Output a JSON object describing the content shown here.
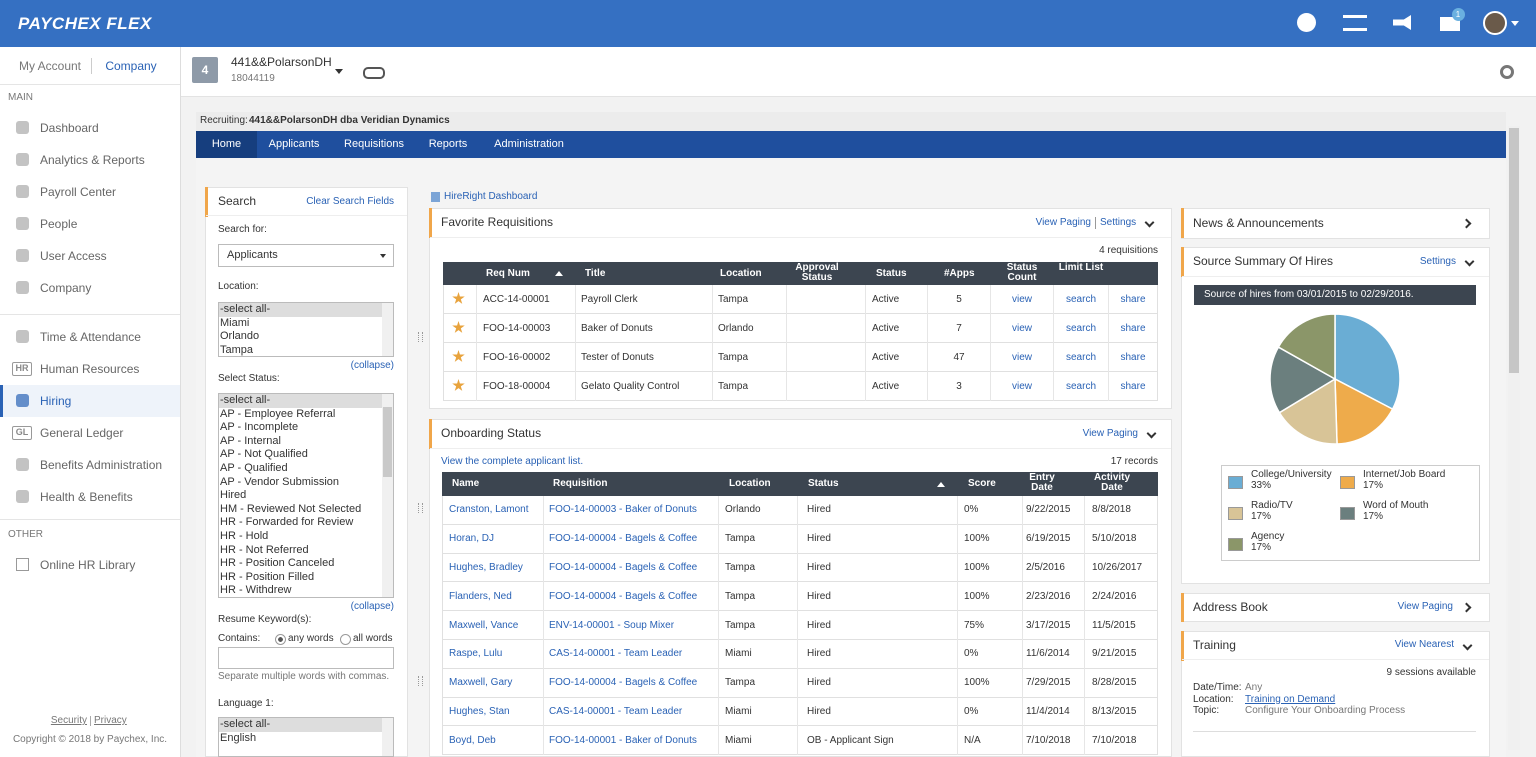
{
  "header": {
    "logo": "PAYCHEX FLEX",
    "notification_count": "1"
  },
  "sidebar": {
    "tabs": [
      "My Account",
      "Company"
    ],
    "main_label": "MAIN",
    "main_items": [
      {
        "label": "Dashboard"
      },
      {
        "label": "Analytics & Reports"
      },
      {
        "label": "Payroll Center"
      },
      {
        "label": "People"
      },
      {
        "label": "User Access"
      },
      {
        "label": "Company"
      },
      {
        "label": "Time & Attendance"
      },
      {
        "label": "Human Resources",
        "icon": "HR"
      },
      {
        "label": "Hiring"
      },
      {
        "label": "General Ledger",
        "icon": "GL"
      },
      {
        "label": "Benefits Administration"
      },
      {
        "label": "Health & Benefits"
      }
    ],
    "active": 8,
    "other_label": "OTHER",
    "other_items": [
      "Online HR Library"
    ],
    "footer_links": [
      "Security",
      "Privacy"
    ],
    "copyright": "Copyright © 2018 by Paychex, Inc."
  },
  "company": {
    "number": "4",
    "name": "441&&PolarsonDH",
    "id": "18044119"
  },
  "recruiting": {
    "label": "Recruiting:",
    "company": "441&&PolarsonDH dba Veridian Dynamics"
  },
  "nav": {
    "items": [
      "Home",
      "Applicants",
      "Requisitions",
      "Reports",
      "Administration"
    ],
    "active": 0
  },
  "search": {
    "title": "Search",
    "clear": "Clear Search Fields",
    "search_for_label": "Search for:",
    "search_for": "Applicants",
    "location_label": "Location:",
    "locations": [
      "-select all-",
      "Miami",
      "Orlando",
      "Tampa"
    ],
    "collapse": "(collapse)",
    "status_label": "Select Status:",
    "statuses": [
      "-select all-",
      "AP - Employee Referral",
      "AP - Incomplete",
      "AP - Internal",
      "AP - Not Qualified",
      "AP - Qualified",
      "AP - Vendor Submission",
      "Hired",
      "HM - Reviewed Not Selected",
      "HR - Forwarded for Review",
      "HR - Hold",
      "HR - Not Referred",
      "HR - Position Canceled",
      "HR - Position Filled",
      "HR - Withdrew"
    ],
    "keyword_label": "Resume Keyword(s):",
    "contains_label": "Contains:",
    "contains_options": [
      "any words",
      "all words"
    ],
    "keyword_hint": "Separate multiple words with commas.",
    "language_label": "Language 1:",
    "languages": [
      "-select all-",
      "English"
    ]
  },
  "hireright": "HireRight Dashboard",
  "favorites": {
    "title": "Favorite Requisitions",
    "view_paging": "View Paging",
    "settings": "Settings",
    "count": "4 requisitions",
    "columns": [
      "Req Num",
      "Title",
      "Location",
      "Approval Status",
      "Status",
      "#Apps",
      "Status Count",
      "Limit List"
    ],
    "rows": [
      [
        "ACC-14-00001",
        "Payroll Clerk",
        "Tampa",
        "Active",
        "5",
        "view",
        "search",
        "share"
      ],
      [
        "FOO-14-00003",
        "Baker of Donuts",
        "Orlando",
        "Active",
        "7",
        "view",
        "search",
        "share"
      ],
      [
        "FOO-16-00002",
        "Tester of Donuts",
        "Tampa",
        "Active",
        "47",
        "view",
        "search",
        "share"
      ],
      [
        "FOO-18-00004",
        "Gelato Quality Control",
        "Tampa",
        "Active",
        "3",
        "view",
        "search",
        "share"
      ]
    ]
  },
  "onboarding": {
    "title": "Onboarding Status",
    "view_paging": "View Paging",
    "link": "View the complete applicant list.",
    "count": "17 records",
    "columns": [
      "Name",
      "Requisition",
      "Location",
      "Status",
      "Score",
      "Entry Date",
      "Activity Date"
    ],
    "rows": [
      [
        "Cranston, Lamont",
        "FOO-14-00003 - Baker of Donuts",
        "Orlando",
        "Hired",
        "0%",
        "9/22/2015",
        "8/8/2018"
      ],
      [
        "Horan, DJ",
        "FOO-14-00004 - Bagels & Coffee",
        "Tampa",
        "Hired",
        "100%",
        "6/19/2015",
        "5/10/2018"
      ],
      [
        "Hughes, Bradley",
        "FOO-14-00004 - Bagels & Coffee",
        "Tampa",
        "Hired",
        "100%",
        "2/5/2016",
        "10/26/2017"
      ],
      [
        "Flanders, Ned",
        "FOO-14-00004 - Bagels & Coffee",
        "Tampa",
        "Hired",
        "100%",
        "2/23/2016",
        "2/24/2016"
      ],
      [
        "Maxwell, Vance",
        "ENV-14-00001 - Soup Mixer",
        "Tampa",
        "Hired",
        "75%",
        "3/17/2015",
        "11/5/2015"
      ],
      [
        "Raspe, Lulu",
        "CAS-14-00001 - Team Leader",
        "Miami",
        "Hired",
        "0%",
        "11/6/2014",
        "9/21/2015"
      ],
      [
        "Maxwell, Gary",
        "FOO-14-00004 - Bagels & Coffee",
        "Tampa",
        "Hired",
        "100%",
        "7/29/2015",
        "8/28/2015"
      ],
      [
        "Hughes, Stan",
        "CAS-14-00001 - Team Leader",
        "Miami",
        "Hired",
        "0%",
        "11/4/2014",
        "8/13/2015"
      ],
      [
        "Boyd, Deb",
        "FOO-14-00001 - Baker of Donuts",
        "Miami",
        "OB - Applicant Sign",
        "N/A",
        "7/10/2018",
        "7/10/2018"
      ]
    ]
  },
  "news": {
    "title": "News & Announcements"
  },
  "source_summary": {
    "title": "Source Summary Of Hires",
    "settings": "Settings"
  },
  "chart_data": {
    "type": "pie",
    "title": "Source of hires from 03/01/2015 to 02/29/2016.",
    "categories": [
      "College/University",
      "Internet/Job Board",
      "Radio/TV",
      "Word of Mouth",
      "Agency"
    ],
    "values": [
      33,
      17,
      17,
      17,
      17
    ],
    "value_labels": [
      "33%",
      "17%",
      "17%",
      "17%",
      "17%"
    ],
    "colors": [
      "#6aadd4",
      "#eeab4b",
      "#d8c497",
      "#6b7f7e",
      "#8b9669"
    ]
  },
  "address_book": {
    "title": "Address Book",
    "view_paging": "View Paging"
  },
  "training": {
    "title": "Training",
    "view_nearest": "View Nearest",
    "count": "9 sessions available",
    "fields": [
      {
        "label": "Date/Time:",
        "value": "Any"
      },
      {
        "label": "Location:",
        "value": "Training on Demand"
      },
      {
        "label": "Topic:",
        "value": "Configure Your Onboarding Process"
      }
    ]
  }
}
